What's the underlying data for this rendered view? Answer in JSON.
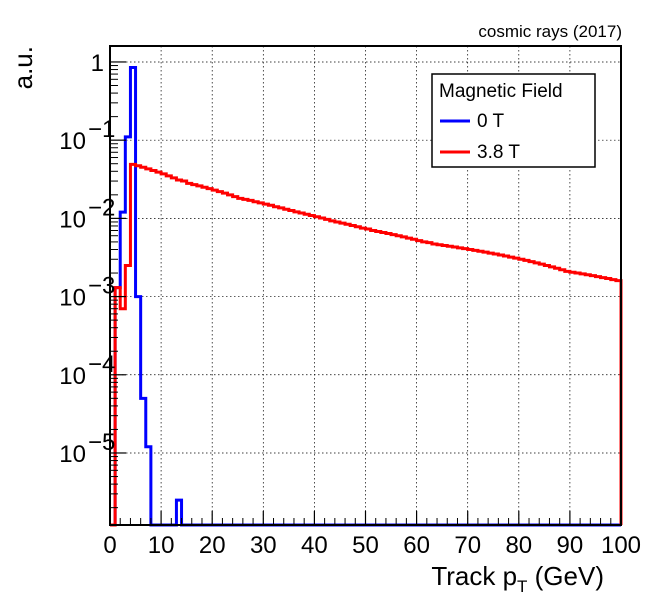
{
  "chart_data": {
    "type": "line",
    "subtype": "step-histogram",
    "title": "",
    "annotation": "cosmic rays (2017)",
    "xlabel_main": "Track p",
    "xlabel_sub": "T",
    "xlabel_unit": " (GeV)",
    "ylabel": "a.u.",
    "xlim": [
      0,
      100
    ],
    "ylim": [
      1.2e-06,
      1.6
    ],
    "yscale": "log",
    "grid": true,
    "x_ticks": [
      "0",
      "10",
      "20",
      "30",
      "40",
      "50",
      "60",
      "70",
      "80",
      "90",
      "100"
    ],
    "y_ticks": [
      {
        "value": 1,
        "base": "1",
        "exp": ""
      },
      {
        "value": 0.1,
        "base": "10",
        "exp": "−1"
      },
      {
        "value": 0.01,
        "base": "10",
        "exp": "−2"
      },
      {
        "value": 0.001,
        "base": "10",
        "exp": "−3"
      },
      {
        "value": 0.0001,
        "base": "10",
        "exp": "−4"
      },
      {
        "value": 1e-05,
        "base": "10",
        "exp": "−5"
      }
    ],
    "legend": {
      "title": "Magnetic Field",
      "position": "top-right",
      "entries": [
        "0 T",
        "3.8 T"
      ]
    },
    "bin_width": 1,
    "series": [
      {
        "name": "0 T",
        "color": "#0000ff",
        "bins_start": 0,
        "values": [
          0,
          0.0013,
          0.012,
          0.11,
          0.85,
          0.001,
          5e-05,
          1.2e-05,
          0,
          0,
          0,
          0,
          0,
          2.5e-06,
          0
        ]
      },
      {
        "name": "3.8 T",
        "color": "#ff0000",
        "bins_start": 0,
        "values": [
          0,
          0.0013,
          0.0007,
          0.0025,
          0.049,
          0.047,
          0.045,
          0.043,
          0.041,
          0.039,
          0.037,
          0.035,
          0.033,
          0.031,
          0.03,
          0.028,
          0.027,
          0.026,
          0.025,
          0.024,
          0.023,
          0.022,
          0.021,
          0.02,
          0.019,
          0.018,
          0.0175,
          0.017,
          0.0163,
          0.0158,
          0.0152,
          0.0147,
          0.0141,
          0.0136,
          0.0131,
          0.0126,
          0.0121,
          0.0117,
          0.0113,
          0.0109,
          0.0105,
          0.0101,
          0.0097,
          0.0093,
          0.009,
          0.0087,
          0.0084,
          0.0081,
          0.0078,
          0.0075,
          0.0073,
          0.007,
          0.0068,
          0.0066,
          0.0064,
          0.0062,
          0.006,
          0.0058,
          0.0056,
          0.0054,
          0.0052,
          0.005,
          0.0049,
          0.0047,
          0.0046,
          0.0045,
          0.0044,
          0.0043,
          0.0042,
          0.0041,
          0.004,
          0.0039,
          0.0038,
          0.0037,
          0.0036,
          0.0035,
          0.0034,
          0.0033,
          0.0032,
          0.0031,
          0.003,
          0.0029,
          0.0028,
          0.0027,
          0.0026,
          0.0025,
          0.0024,
          0.0023,
          0.0022,
          0.0021,
          0.00205,
          0.002,
          0.00195,
          0.0019,
          0.00185,
          0.0018,
          0.00175,
          0.0017,
          0.00165,
          0.0016
        ]
      }
    ]
  }
}
